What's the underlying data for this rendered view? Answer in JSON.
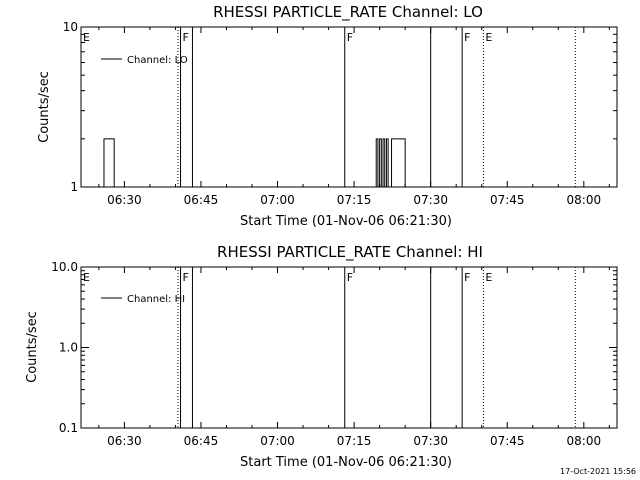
{
  "stamp": "17-Oct-2021 15:56",
  "chart_data": [
    {
      "type": "line",
      "title": "RHESSI PARTICLE_RATE Channel: LO",
      "xlabel": "Start Time (01-Nov-06 06:21:30)",
      "ylabel": "Counts/sec",
      "xticks": [
        "06:30",
        "06:45",
        "07:00",
        "07:15",
        "07:30",
        "07:45",
        "08:00"
      ],
      "yticks": [
        "1",
        "10"
      ],
      "y_scale": "log",
      "xlim": [
        "06:21:30",
        "08:06:30"
      ],
      "ylim": [
        1,
        10
      ],
      "legend": "top-left",
      "series": [
        {
          "name": "Channel: LO",
          "x": [
            "06:25:00",
            "06:25:30",
            "06:26:00",
            "06:27:30",
            "06:28:00",
            "06:28:30",
            "07:19:00",
            "07:19:20",
            "07:19:40",
            "07:20:00",
            "07:20:20",
            "07:20:40",
            "07:21:00",
            "07:21:20",
            "07:21:40",
            "07:22:00",
            "07:22:20",
            "07:22:40",
            "07:23:00",
            "07:23:20",
            "07:23:40",
            "07:24:00",
            "07:24:20",
            "07:24:40",
            "07:25:00",
            "07:25:20"
          ],
          "y": [
            1,
            1,
            2,
            2,
            1,
            1,
            1,
            2,
            1,
            2,
            1,
            2,
            1,
            2,
            1,
            1,
            2,
            2,
            2,
            2,
            2,
            2,
            2,
            2,
            1,
            1
          ]
        }
      ],
      "events": [
        {
          "type": "solid",
          "time": "06:41:00",
          "label": "F"
        },
        {
          "type": "solid",
          "time": "06:43:20",
          "label": ""
        },
        {
          "type": "solid",
          "time": "07:13:10",
          "label": "F"
        },
        {
          "type": "solid",
          "time": "07:30:00",
          "label": ""
        },
        {
          "type": "solid",
          "time": "07:36:10",
          "label": "F"
        },
        {
          "type": "dotted",
          "time": "06:40:30",
          "label": ""
        },
        {
          "type": "dotted",
          "time": "07:40:20",
          "label": "E"
        },
        {
          "type": "dotted",
          "time": "07:58:20",
          "label": ""
        },
        {
          "type": "none",
          "time": "06:21:30",
          "label": "E"
        }
      ]
    },
    {
      "type": "line",
      "title": "RHESSI PARTICLE_RATE Channel: HI",
      "xlabel": "Start Time (01-Nov-06 06:21:30)",
      "ylabel": "Counts/sec",
      "xticks": [
        "06:30",
        "06:45",
        "07:00",
        "07:15",
        "07:30",
        "07:45",
        "08:00"
      ],
      "yticks": [
        "0.1",
        "1.0",
        "10.0"
      ],
      "y_scale": "log",
      "xlim": [
        "06:21:30",
        "08:06:30"
      ],
      "ylim": [
        0.1,
        10
      ],
      "legend": "top-left",
      "series": [
        {
          "name": "Channel: HI",
          "x": [],
          "y": []
        }
      ],
      "events": [
        {
          "type": "solid",
          "time": "06:41:00",
          "label": "F"
        },
        {
          "type": "solid",
          "time": "06:43:20",
          "label": ""
        },
        {
          "type": "solid",
          "time": "07:13:10",
          "label": "F"
        },
        {
          "type": "solid",
          "time": "07:30:00",
          "label": ""
        },
        {
          "type": "solid",
          "time": "07:36:10",
          "label": "F"
        },
        {
          "type": "dotted",
          "time": "06:40:30",
          "label": ""
        },
        {
          "type": "dotted",
          "time": "07:40:20",
          "label": "E"
        },
        {
          "type": "dotted",
          "time": "07:58:20",
          "label": ""
        },
        {
          "type": "none",
          "time": "06:21:30",
          "label": "E"
        }
      ]
    }
  ]
}
